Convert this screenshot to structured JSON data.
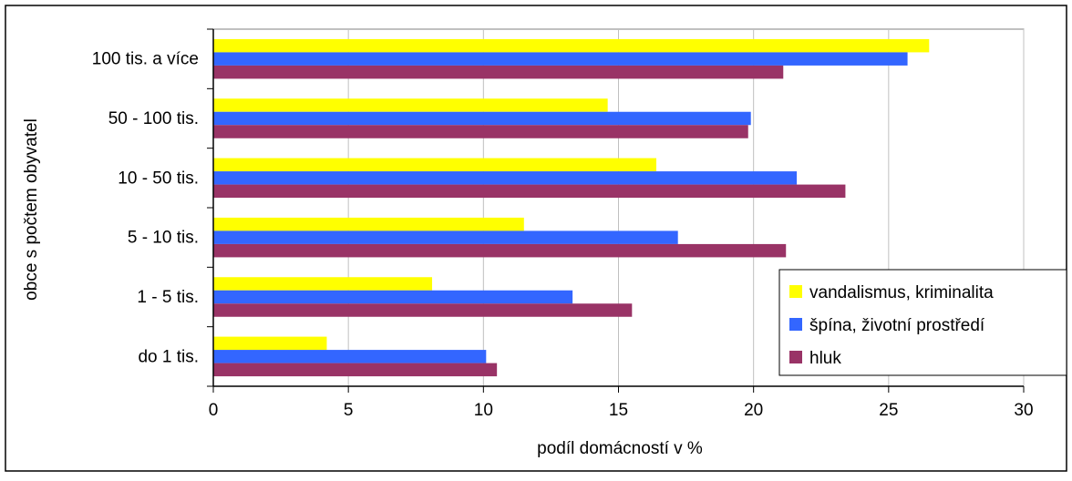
{
  "chart_data": {
    "type": "bar",
    "orientation": "horizontal",
    "categories": [
      "100 tis. a více",
      "50 - 100 tis.",
      "10 - 50 tis.",
      "5  - 10 tis.",
      "1 - 5 tis.",
      "do 1 tis."
    ],
    "series": [
      {
        "name": "vandalismus, kriminalita",
        "color": "#ffff00",
        "values": [
          26.5,
          14.6,
          16.4,
          11.5,
          8.1,
          4.2
        ]
      },
      {
        "name": "špína, životní prostředí",
        "color": "#3366ff",
        "values": [
          25.7,
          19.9,
          21.6,
          17.2,
          13.3,
          10.1
        ]
      },
      {
        "name": "hluk",
        "color": "#993366",
        "values": [
          21.1,
          19.8,
          23.4,
          21.2,
          15.5,
          10.5
        ]
      }
    ],
    "xlabel": "podíl domácností v %",
    "ylabel": "obce s počtem obyvatel",
    "xlim": [
      0,
      30
    ],
    "xticks": [
      0,
      5,
      10,
      15,
      20,
      25,
      30
    ],
    "grid": true,
    "legend_position": "bottom-right"
  }
}
